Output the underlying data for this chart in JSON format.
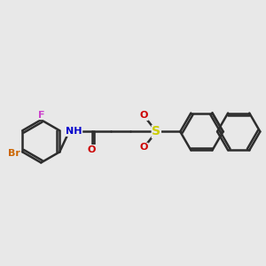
{
  "background_color": "#e8e8e8",
  "bond_color": "#2d2d2d",
  "bond_width": 1.8,
  "atom_colors": {
    "F": "#cc44cc",
    "Br": "#cc6600",
    "N": "#0000cc",
    "O": "#cc0000",
    "S": "#cccc00",
    "C": "#2d2d2d"
  },
  "font_size": 8,
  "fig_width": 3.0,
  "fig_height": 3.0,
  "dpi": 100
}
